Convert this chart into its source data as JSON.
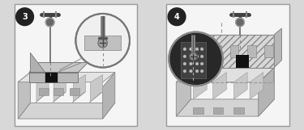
{
  "fig_width": 3.75,
  "fig_height": 1.61,
  "dpi": 100,
  "bg_color": "#e8e8e8",
  "panel_bg": "#f5f5f5",
  "border_color": "#999999",
  "label_bg": "#222222",
  "label_text_color": "#ffffff",
  "label_fontsize": 7,
  "step3_label": "3",
  "step4_label": "4",
  "outer_bg": "#d8d8d8",
  "c1": "#c8c8c8",
  "c2": "#b0b0b0",
  "c3": "#909090",
  "c4": "#686868",
  "c5": "#404040",
  "black": "#111111",
  "white": "#f8f8f8",
  "dashed": "#888888"
}
